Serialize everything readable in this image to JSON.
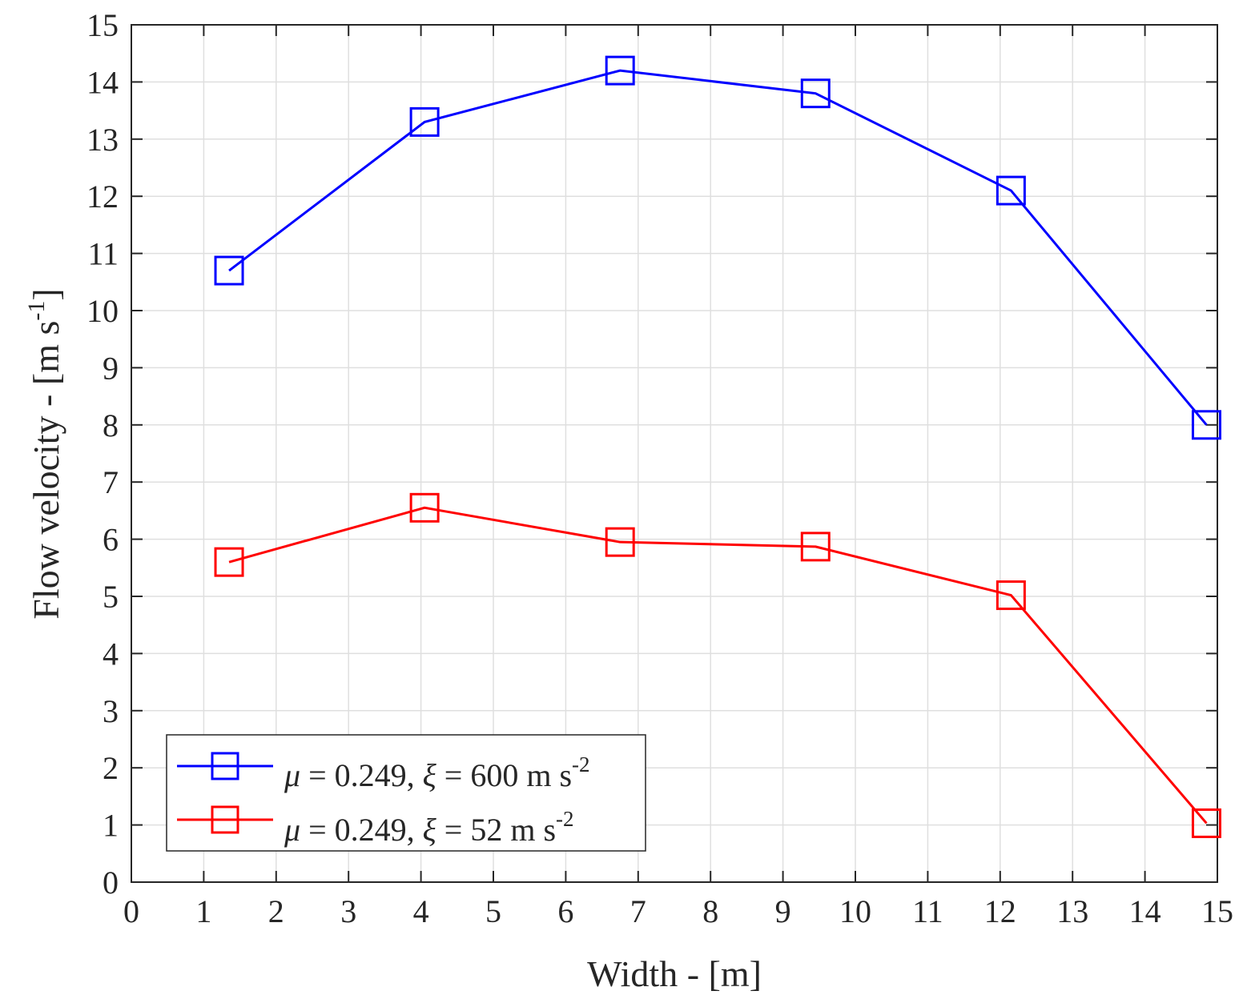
{
  "chart_data": {
    "type": "line",
    "xlabel": "Width - [m]",
    "ylabel_main": "Flow velocity - [m s",
    "ylabel_sup": "-1",
    "ylabel_close": "]",
    "xlim": [
      0,
      15
    ],
    "ylim": [
      0,
      15
    ],
    "xticks": [
      0,
      1,
      2,
      3,
      4,
      5,
      6,
      7,
      8,
      9,
      10,
      11,
      12,
      13,
      14,
      15
    ],
    "yticks": [
      0,
      1,
      2,
      3,
      4,
      5,
      6,
      7,
      8,
      9,
      10,
      11,
      12,
      13,
      14,
      15
    ],
    "grid": true,
    "legend_position": "bottom-left",
    "x": [
      1.35,
      4.05,
      6.75,
      9.45,
      12.15,
      14.85
    ],
    "series": [
      {
        "legend_mu": "μ",
        "legend_mid": " = 0.249, ",
        "legend_xi": "ξ",
        "legend_val": " = 600 m s",
        "legend_sup": "-2",
        "color": "#0000ff",
        "marker": "square",
        "values": [
          10.7,
          13.3,
          14.2,
          13.8,
          12.1,
          8.0
        ]
      },
      {
        "legend_mu": "μ",
        "legend_mid": " = 0.249, ",
        "legend_xi": "ξ",
        "legend_val": " = 52 m s",
        "legend_sup": "-2",
        "color": "#ff0000",
        "marker": "square",
        "values": [
          5.6,
          6.55,
          5.95,
          5.87,
          5.02,
          1.03
        ]
      }
    ]
  }
}
